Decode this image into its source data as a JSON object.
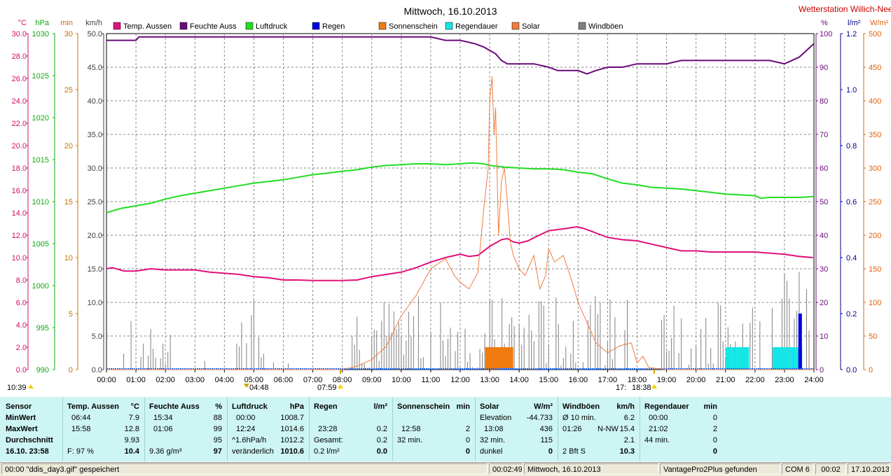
{
  "chart_data": {
    "type": "line",
    "title": "Mittwoch, 16.10.2013",
    "station": "Wetterstation Willich-Neersen",
    "x_ticks": [
      "00:00",
      "01:00",
      "02:00",
      "03:00",
      "04:00",
      "05:00",
      "06:00",
      "07:00",
      "08:00",
      "09:00",
      "10:00",
      "11:00",
      "12:00",
      "13:00",
      "14:00",
      "15:00",
      "16:00",
      "17:00",
      "18:00",
      "19:00",
      "20:00",
      "21:00",
      "22:00",
      "23:00",
      "24:00"
    ],
    "legend": [
      {
        "name": "Temp. Aussen",
        "color": "#e0107a"
      },
      {
        "name": "Feuchte Auss",
        "color": "#6a0a7a"
      },
      {
        "name": "Luftdruck",
        "color": "#22dd22"
      },
      {
        "name": "Regen",
        "color": "#0000dd"
      },
      {
        "name": "Sonnenschein",
        "color": "#f07c10"
      },
      {
        "name": "Regendauer",
        "color": "#14e6e6"
      },
      {
        "name": "Solar",
        "color": "#f07c40"
      },
      {
        "name": "Windböen",
        "color": "#808080"
      }
    ],
    "axes_left": [
      {
        "unit": "°C",
        "color": "#d0106a",
        "ticks": [
          "30.0",
          "28.0",
          "26.0",
          "24.0",
          "22.0",
          "20.0",
          "18.0",
          "16.0",
          "14.0",
          "12.0",
          "10.0",
          "8.0",
          "6.0",
          "4.0",
          "2.0",
          "0.0"
        ],
        "range": [
          0,
          30
        ]
      },
      {
        "unit": "hPa",
        "color": "#10aa10",
        "ticks": [
          "1030",
          "1025",
          "1020",
          "1015",
          "1010",
          "1005",
          "1000",
          "995",
          "990"
        ],
        "range": [
          990,
          1030
        ]
      },
      {
        "unit": "min",
        "color": "#c87000",
        "ticks": [
          "30",
          "25",
          "20",
          "15",
          "10",
          "5",
          "0"
        ],
        "range": [
          0,
          30
        ]
      },
      {
        "unit": "km/h",
        "color": "#404040",
        "ticks": [
          "50.0",
          "45.0",
          "40.0",
          "35.0",
          "30.0",
          "25.0",
          "20.0",
          "15.0",
          "10.0",
          "5.0",
          "0.0"
        ],
        "range": [
          0,
          50
        ]
      }
    ],
    "axes_right": [
      {
        "unit": "%",
        "color": "#6a0a7a",
        "ticks": [
          "100",
          "90",
          "80",
          "70",
          "60",
          "50",
          "40",
          "30",
          "20",
          "10",
          "0"
        ],
        "range": [
          0,
          100
        ]
      },
      {
        "unit": "l/m²",
        "color": "#00008b",
        "ticks": [
          "1.2",
          "1.0",
          "0.8",
          "0.6",
          "0.4",
          "0.2",
          "0.0"
        ],
        "range": [
          0,
          1.2
        ]
      },
      {
        "unit": "W/m²",
        "color": "#e06010",
        "ticks": [
          "500",
          "450",
          "400",
          "350",
          "300",
          "250",
          "200",
          "150",
          "100",
          "50",
          "0"
        ],
        "range": [
          0,
          500
        ]
      }
    ],
    "series": [
      {
        "name": "Temp. Aussen",
        "axis": "°C",
        "color": "#e0107a",
        "x": [
          0,
          0.2,
          0.6,
          1,
          1.5,
          2,
          2.5,
          3,
          3.5,
          4,
          4.5,
          5,
          5.5,
          6,
          6.5,
          7,
          7.5,
          8,
          8.5,
          9,
          9.5,
          10,
          10.5,
          11,
          11.5,
          12,
          12.3,
          12.6,
          12.8,
          13,
          13.2,
          13.4,
          13.6,
          13.8,
          14,
          14.3,
          14.6,
          15,
          15.3,
          15.6,
          15.96,
          16.2,
          16.5,
          16.8,
          17,
          17.5,
          18,
          18.5,
          19,
          19.5,
          20,
          20.5,
          21,
          21.5,
          22,
          22.5,
          23,
          23.5,
          23.97
        ],
        "y": [
          9.0,
          9.1,
          8.8,
          8.8,
          9.0,
          8.9,
          8.9,
          8.9,
          8.7,
          8.6,
          8.5,
          8.3,
          8.2,
          8.0,
          8.0,
          7.95,
          7.95,
          7.95,
          8.0,
          8.3,
          8.5,
          8.7,
          9.1,
          9.6,
          10.0,
          10.3,
          10.1,
          10.2,
          10.6,
          11.0,
          11.3,
          11.6,
          11.7,
          11.4,
          11.3,
          11.5,
          11.9,
          12.4,
          12.5,
          12.6,
          12.75,
          12.6,
          12.3,
          12.0,
          11.8,
          11.6,
          11.5,
          11.2,
          10.9,
          10.6,
          10.6,
          10.5,
          10.5,
          10.5,
          10.5,
          10.4,
          10.3,
          10.1,
          10.0
        ]
      },
      {
        "name": "Feuchte Auss",
        "axis": "%",
        "color": "#6a0a7a",
        "x": [
          0,
          0.5,
          1,
          1.1,
          1.5,
          2,
          2.5,
          3,
          3.5,
          4,
          4.5,
          5,
          5.5,
          6,
          6.5,
          7,
          7.5,
          8,
          8.5,
          9,
          9.5,
          10,
          10.5,
          11,
          11.5,
          12,
          12.5,
          12.8,
          13,
          13.2,
          13.4,
          13.6,
          13.8,
          14,
          14.5,
          15,
          15.3,
          15.6,
          16,
          16.3,
          16.6,
          17,
          17.5,
          18,
          18.5,
          19,
          19.5,
          20,
          20.5,
          21,
          21.5,
          22,
          22.5,
          23,
          23.5,
          24
        ],
        "y": [
          98,
          98,
          98,
          99,
          99,
          99,
          99,
          99,
          99,
          99,
          99,
          99,
          99,
          99,
          99,
          99,
          99,
          99,
          99,
          99,
          99,
          99,
          99,
          99,
          98,
          98,
          97,
          96,
          95,
          94,
          92,
          91,
          91,
          91,
          91,
          90,
          89,
          89,
          89,
          88,
          89,
          90,
          90,
          91,
          91,
          91,
          92,
          92,
          92,
          92,
          92,
          92,
          92,
          91,
          93,
          97
        ]
      },
      {
        "name": "Luftdruck",
        "axis": "hPa",
        "color": "#22dd22",
        "x": [
          0,
          0.02,
          0.5,
          1,
          1.5,
          2,
          2.5,
          3,
          3.5,
          4,
          4.5,
          5,
          5.5,
          6,
          6.5,
          7,
          7.5,
          8,
          8.5,
          9,
          9.5,
          10,
          10.5,
          11,
          11.5,
          12,
          12.4,
          12.8,
          13,
          13.5,
          14,
          14.5,
          15,
          15.5,
          16,
          16.5,
          17,
          17.5,
          18,
          18.5,
          19,
          19.5,
          20,
          20.5,
          21,
          21.5,
          22,
          22.2,
          22.5,
          23,
          23.5,
          24
        ],
        "y": [
          1008.7,
          1008.7,
          1009.2,
          1009.5,
          1009.8,
          1010.3,
          1010.7,
          1011.0,
          1011.3,
          1011.6,
          1011.9,
          1012.2,
          1012.4,
          1012.6,
          1012.9,
          1013.2,
          1013.4,
          1013.6,
          1013.8,
          1014.1,
          1014.3,
          1014.4,
          1014.5,
          1014.5,
          1014.4,
          1014.5,
          1014.6,
          1014.5,
          1014.3,
          1014.1,
          1014.0,
          1013.9,
          1013.9,
          1013.8,
          1013.5,
          1013.3,
          1012.7,
          1012.2,
          1012.0,
          1011.7,
          1011.6,
          1011.5,
          1011.3,
          1011.1,
          1010.9,
          1010.8,
          1010.7,
          1010.4,
          1010.5,
          1010.5,
          1010.5,
          1010.6
        ]
      },
      {
        "name": "Solar",
        "axis": "W/m²",
        "color": "#f07c40",
        "x": [
          0,
          8.0,
          8.5,
          9.0,
          9.5,
          10.0,
          10.5,
          11.0,
          11.5,
          11.8,
          12.0,
          12.3,
          12.6,
          12.8,
          12.95,
          13.0,
          13.08,
          13.15,
          13.2,
          13.3,
          13.4,
          13.5,
          13.6,
          13.7,
          13.8,
          14.0,
          14.2,
          14.5,
          14.7,
          14.9,
          15.0,
          15.2,
          15.5,
          15.8,
          16.0,
          16.3,
          16.6,
          17.0,
          17.4,
          17.8,
          18.0,
          18.2,
          18.4,
          19.0,
          24
        ],
        "y": [
          0,
          0,
          5,
          15,
          35,
          80,
          110,
          150,
          165,
          140,
          130,
          120,
          145,
          240,
          300,
          400,
          436,
          350,
          390,
          200,
          280,
          300,
          250,
          190,
          170,
          150,
          140,
          170,
          120,
          140,
          180,
          160,
          170,
          130,
          100,
          70,
          40,
          25,
          35,
          40,
          10,
          20,
          3,
          0,
          0
        ]
      },
      {
        "name": "Windböen",
        "axis": "km/h",
        "color": "#808080",
        "type": "bar"
      },
      {
        "name": "Sonnenschein",
        "axis": "min",
        "color": "#f07c10",
        "type": "bar",
        "x": [
          12.85,
          13.0,
          13.15,
          13.3,
          13.45,
          13.6
        ],
        "y": [
          2,
          2,
          2,
          2,
          2,
          2
        ]
      },
      {
        "name": "Regendauer",
        "axis": "min",
        "color": "#14e6e6",
        "type": "bar",
        "x": [
          21.0,
          21.2,
          21.4,
          21.6,
          22.6,
          22.8,
          23.0,
          23.2,
          23.4
        ],
        "y": [
          2,
          2,
          2,
          2,
          2,
          2,
          2,
          2,
          2
        ]
      },
      {
        "name": "Regen",
        "axis": "l/m²",
        "color": "#0000dd",
        "type": "bar",
        "x": [
          23.47,
          23.52
        ],
        "y": [
          0.2,
          0.2
        ]
      }
    ],
    "markers": {
      "left_time": "10:39",
      "sunrise": "07:59",
      "sunset": "18:38",
      "moonrise": "04:48",
      "moonset": "17:"
    }
  },
  "stats": {
    "sensor": {
      "header": "Sensor",
      "min": "MinWert",
      "max": "MaxWert",
      "avg": "Durchschnitt",
      "date": "16.10. 23:58"
    },
    "temp": {
      "header": "Temp. Aussen",
      "unit": "°C",
      "min_t": "06:44",
      "min_v": "7.9",
      "max_t": "15:58",
      "max_v": "12.8",
      "avg_v": "9.93",
      "now_l": "F: 97 %",
      "now_v": "10.4"
    },
    "hum": {
      "header": "Feuchte Auss",
      "unit": "%",
      "min_t": "15:34",
      "min_v": "88",
      "max_t": "01:06",
      "max_v": "99",
      "avg_v": "95",
      "now_l": "9.36 g/m³",
      "now_v": "97"
    },
    "press": {
      "header": "Luftdruck",
      "unit": "hPa",
      "min_t": "00:00",
      "min_v": "1008.7",
      "max_t": "12:24",
      "max_v": "1014.6",
      "avg_l": "^1.6hPa/h",
      "avg_v": "1012.2",
      "now_l": "veränderlich",
      "now_v": "1010.6"
    },
    "rain": {
      "header": "Regen",
      "unit": "l/m²",
      "max_t": "23:28",
      "max_v": "0.2",
      "avg_l": "Gesamt:",
      "avg_v": "0.2",
      "now_l": "0.2 l/m²",
      "now_v": "0.0"
    },
    "sun": {
      "header": "Sonnenschein",
      "unit": "min",
      "max_t": "12:58",
      "max_v": "2",
      "avg_l": "32 min.",
      "avg_v": "0",
      "now_v": "0"
    },
    "solar": {
      "header": "Solar",
      "unit": "W/m²",
      "min_l": "Elevation",
      "min_v": "-44.733",
      "max_t": "13:08",
      "max_v": "436",
      "avg_l": "32 min.",
      "avg_v": "115",
      "now_l": "dunkel",
      "now_v": "0"
    },
    "wind": {
      "header": "Windböen",
      "unit": "km/h",
      "min_l": "Ø 10 min.",
      "min_v": "6.2",
      "max_t": "01:26",
      "max_dir": "N-NW",
      "max_v": "15.4",
      "avg_v": "2.1",
      "now_l": "2 Bft S",
      "now_v": "10.3"
    },
    "raindur": {
      "header": "Regendauer",
      "unit": "min",
      "min_t": "00:00",
      "min_v": "0",
      "max_t": "21:02",
      "max_v": "2",
      "avg_l": "44 min.",
      "avg_v": "0",
      "now_v": "0"
    }
  },
  "statusbar": {
    "msg": "00:00  \"ddis_day3.gif\"  gespeichert",
    "time": "00:02:49",
    "date": "Mittwoch, 16.10.2013",
    "device": "VantagePro2Plus gefunden",
    "port": "COM 6",
    "clock": "00:02",
    "today": "17.10.2013"
  }
}
